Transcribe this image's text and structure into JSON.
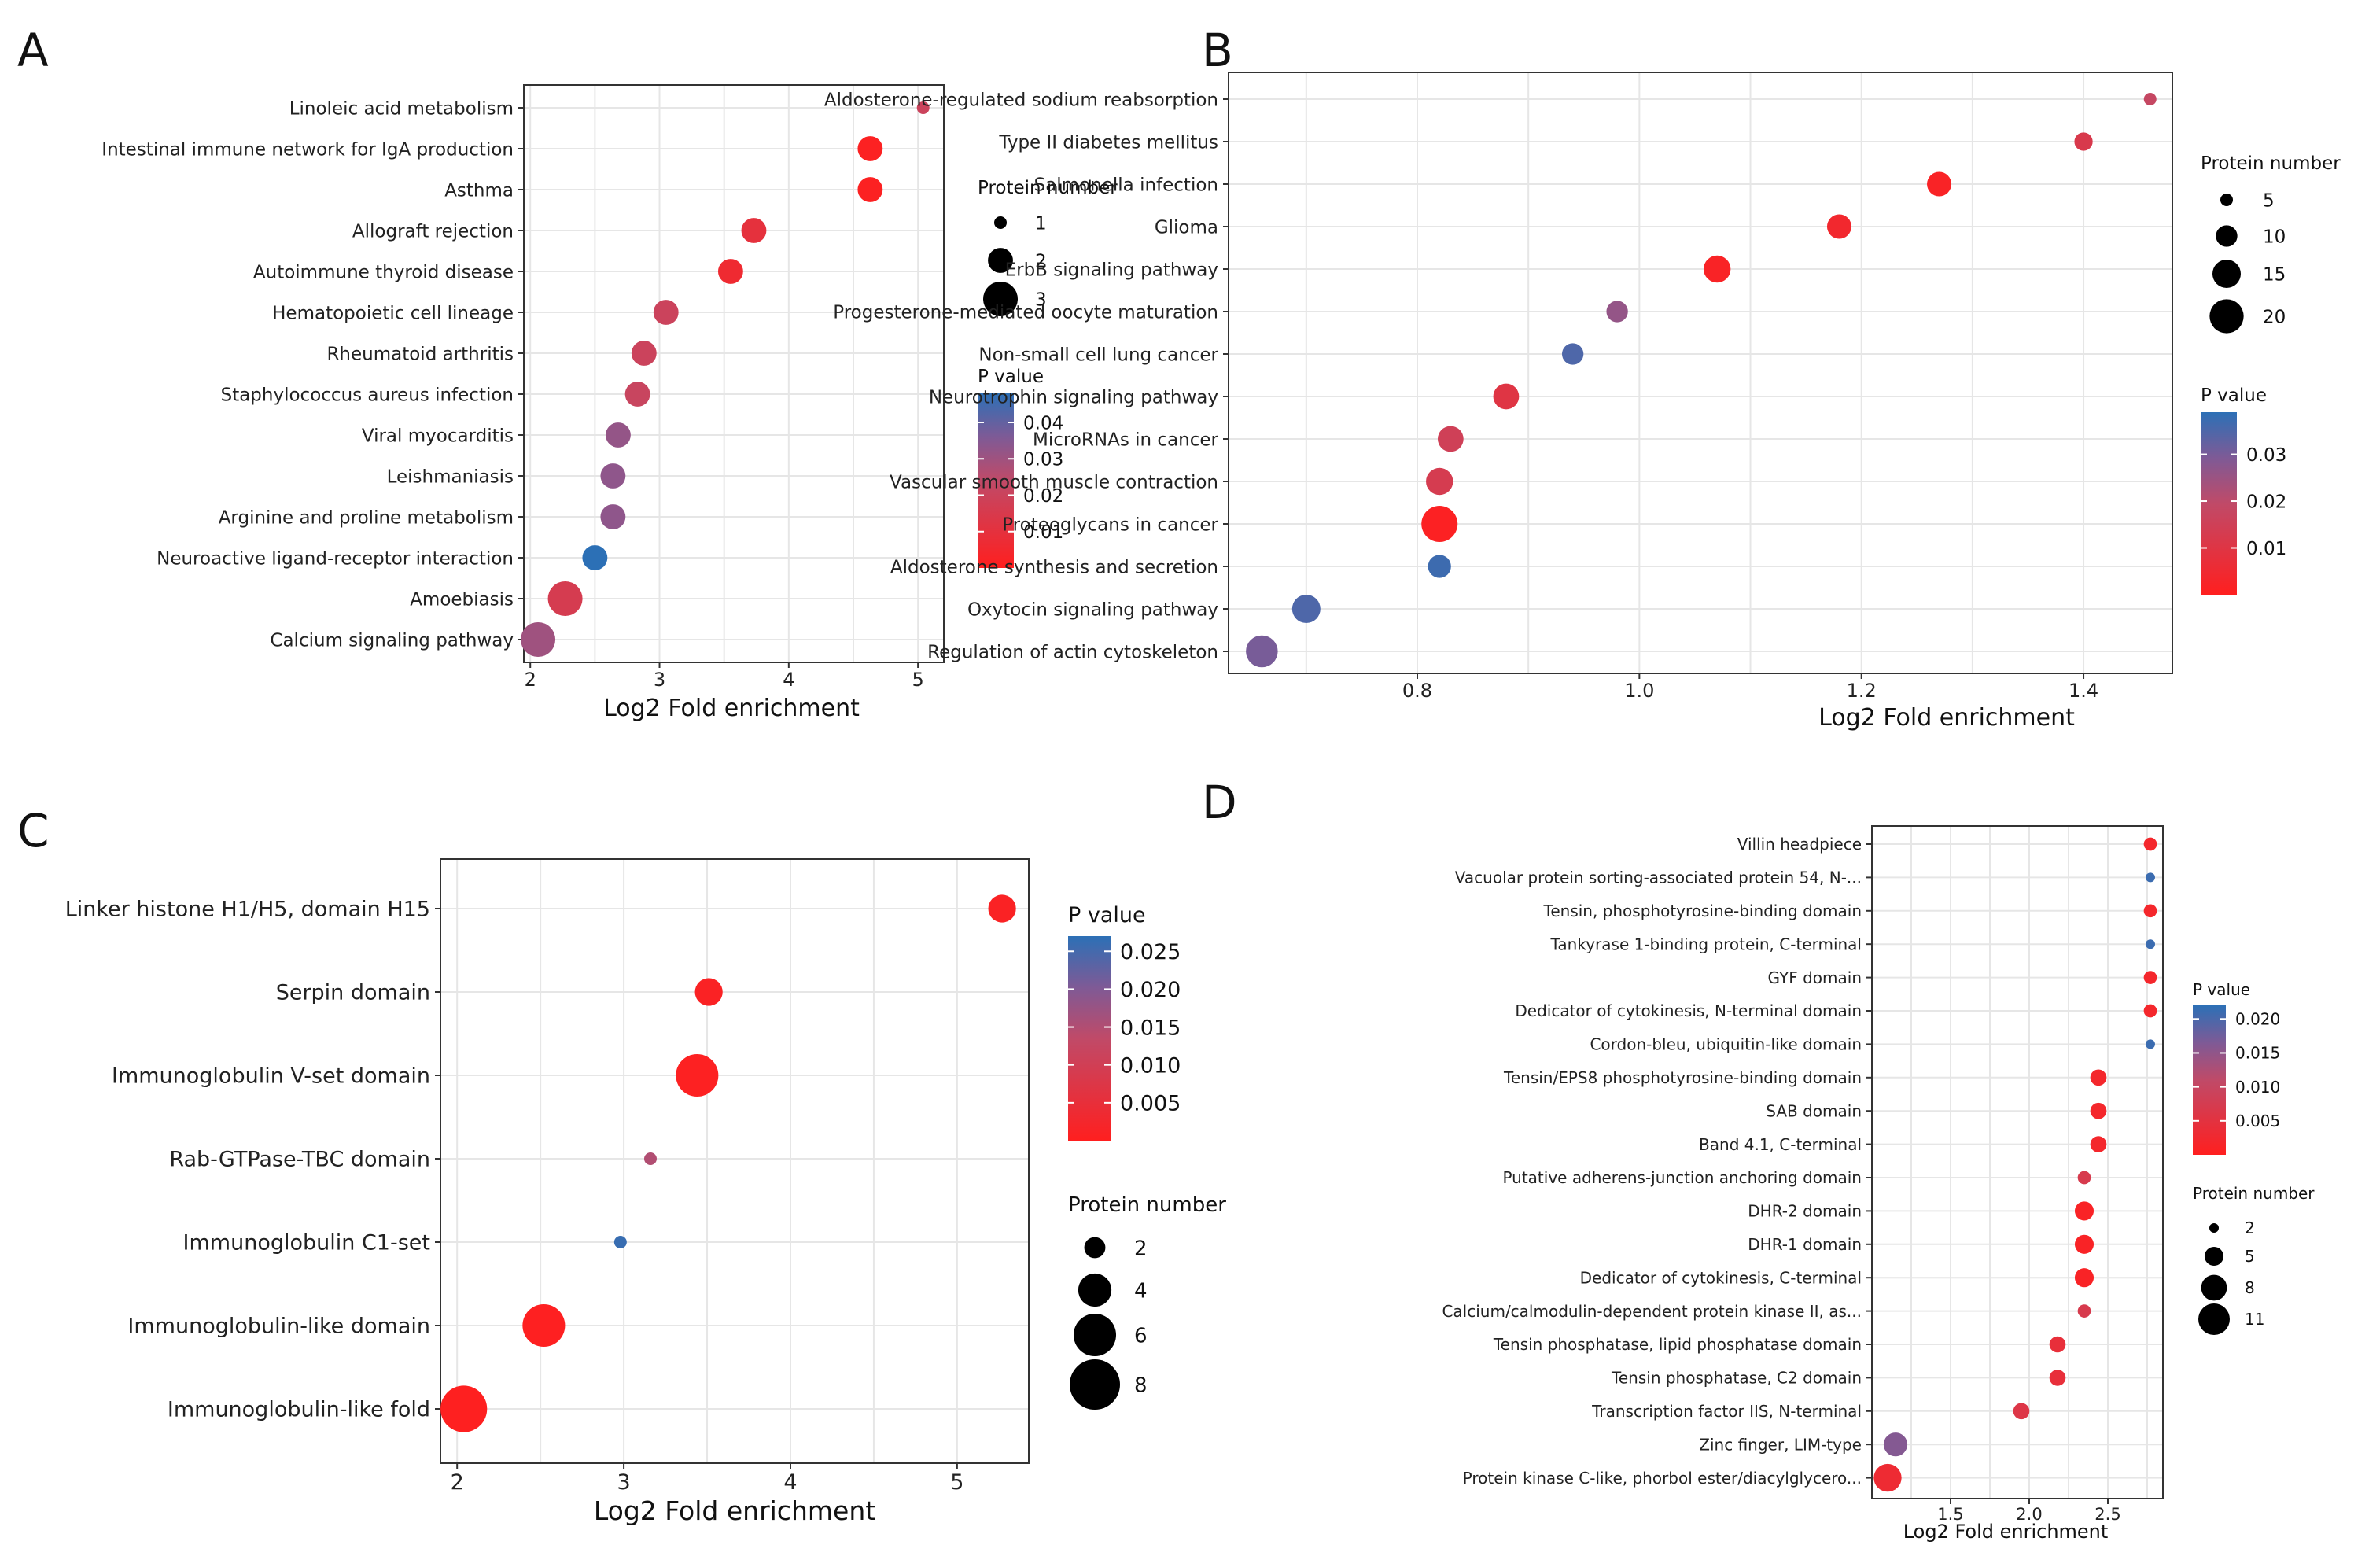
{
  "colors": {
    "high_p": "#2C70B6",
    "mid_p": "#7E5A96",
    "low_p": "#FF1F1F",
    "grid": "#E6E6E6",
    "frame": "#333333"
  },
  "chart_data": [
    {
      "panel": "A",
      "type": "scatter",
      "xlabel": "Log2 Fold enrichment",
      "xlim": [
        1.95,
        5.2
      ],
      "xticks": [
        2,
        3,
        4,
        5
      ],
      "categories": [
        "Linoleic acid metabolism",
        "Intestinal immune network for IgA production",
        "Asthma",
        "Allograft rejection",
        "Autoimmune thyroid disease",
        "Hematopoietic cell lineage",
        "Rheumatoid arthritis",
        "Staphylococcus aureus infection",
        "Viral myocarditis",
        "Leishmaniasis",
        "Arginine and proline metabolism",
        "Neuroactive ligand-receptor interaction",
        "Amoebiasis",
        "Calcium signaling pathway"
      ],
      "x": [
        5.04,
        4.63,
        4.63,
        3.73,
        3.55,
        3.05,
        2.88,
        2.83,
        2.68,
        2.64,
        2.64,
        2.5,
        2.27,
        2.06
      ],
      "protein_number": [
        1,
        2,
        2,
        2,
        2,
        2,
        2,
        2,
        2,
        2,
        2,
        2,
        3,
        3
      ],
      "p_value": [
        0.02,
        0.001,
        0.001,
        0.01,
        0.006,
        0.02,
        0.02,
        0.021,
        0.032,
        0.033,
        0.033,
        0.048,
        0.016,
        0.03
      ],
      "size_legend": {
        "title": "Protein number",
        "values": [
          1,
          2,
          3
        ],
        "labels": [
          "1",
          "2",
          "3"
        ]
      },
      "color_legend": {
        "title": "P value",
        "range": [
          0.0,
          0.048
        ],
        "ticks": [
          0.04,
          0.03,
          0.02,
          0.01
        ],
        "tick_labels": [
          "0.04",
          "0.03",
          "0.02",
          "0.01"
        ]
      }
    },
    {
      "panel": "B",
      "type": "scatter",
      "xlabel": "Log2 Fold enrichment",
      "xlim": [
        0.63,
        1.48
      ],
      "xticks": [
        0.8,
        1.0,
        1.2,
        1.4
      ],
      "tick_labels": [
        "0.8",
        "1.0",
        "1.2",
        "1.4"
      ],
      "categories": [
        "Aldosterone-regulated sodium reabsorption",
        "Type II diabetes mellitus",
        "Salmonella infection",
        "Glioma",
        "ErbB signaling pathway",
        "Progesterone-mediated oocyte maturation",
        "Non-small cell lung cancer",
        "Neurotrophin signaling pathway",
        "MicroRNAs in cancer",
        "Vascular smooth muscle contraction",
        "Proteoglycans in cancer",
        "Aldosterone synthesis and secretion",
        "Oxytocin signaling pathway",
        "Regulation of actin cytoskeleton"
      ],
      "x": [
        1.46,
        1.4,
        1.27,
        1.18,
        1.07,
        0.98,
        0.94,
        0.88,
        0.83,
        0.82,
        0.82,
        0.82,
        0.7,
        0.66
      ],
      "protein_number": [
        5,
        8,
        12,
        12,
        14,
        10,
        10,
        13,
        13,
        14,
        22,
        11,
        15,
        18
      ],
      "p_value": [
        0.018,
        0.012,
        0.002,
        0.004,
        0.002,
        0.026,
        0.035,
        0.01,
        0.015,
        0.013,
        0.001,
        0.037,
        0.035,
        0.03
      ],
      "size_legend": {
        "title": "Protein number",
        "values": [
          5,
          10,
          15,
          20
        ],
        "labels": [
          "5",
          "10",
          "15",
          "20"
        ]
      },
      "color_legend": {
        "title": "P value",
        "range": [
          0.0,
          0.039
        ],
        "ticks": [
          0.03,
          0.02,
          0.01
        ],
        "tick_labels": [
          "0.03",
          "0.02",
          "0.01"
        ]
      }
    },
    {
      "panel": "C",
      "type": "scatter",
      "xlabel": "Log2 Fold enrichment",
      "xlim": [
        1.9,
        5.43
      ],
      "xticks": [
        2,
        3,
        4,
        5
      ],
      "categories": [
        "Linker histone H1/H5, domain H15",
        "Serpin domain",
        "Immunoglobulin V-set domain",
        "Rab-GTPase-TBC domain",
        "Immunoglobulin C1-set",
        "Immunoglobulin-like domain",
        "Immunoglobulin-like fold"
      ],
      "x": [
        5.27,
        3.51,
        3.44,
        3.16,
        2.98,
        2.52,
        2.04
      ],
      "protein_number": [
        3,
        3,
        6,
        1,
        1,
        6,
        7
      ],
      "p_value": [
        0.001,
        0.001,
        0.0005,
        0.015,
        0.026,
        0.0003,
        0.0002
      ],
      "size_legend": {
        "title": "Protein number",
        "values": [
          2,
          4,
          6,
          8
        ],
        "labels": [
          "2",
          "4",
          "6",
          "8"
        ]
      },
      "color_legend": {
        "title": "P value",
        "range": [
          0.0,
          0.027
        ],
        "ticks": [
          0.025,
          0.02,
          0.015,
          0.01,
          0.005
        ],
        "tick_labels": [
          "0.025",
          "0.020",
          "0.015",
          "0.010",
          "0.005"
        ]
      }
    },
    {
      "panel": "D",
      "type": "scatter",
      "xlabel": "Log2 Fold enrichment",
      "xlim": [
        1.0,
        2.85
      ],
      "xticks": [
        1.5,
        2.0,
        2.5
      ],
      "tick_labels": [
        "1.5",
        "2.0",
        "2.5"
      ],
      "categories": [
        "Villin headpiece",
        "Vacuolar protein sorting-associated protein 54, N-...",
        "Tensin, phosphotyrosine-binding domain",
        "Tankyrase 1-binding protein, C-terminal",
        "GYF domain",
        "Dedicator of cytokinesis, N-terminal domain",
        "Cordon-bleu, ubiquitin-like domain",
        "Tensin/EPS8 phosphotyrosine-binding domain",
        "SAB domain",
        "Band 4.1, C-terminal",
        "Putative adherens-junction anchoring domain",
        "DHR-2 domain",
        "DHR-1 domain",
        "Dedicator of cytokinesis, C-terminal",
        "Calcium/calmodulin-dependent protein kinase II, as...",
        "Tensin phosphatase, lipid phosphatase domain",
        "Tensin phosphatase, C2 domain",
        "Transcription factor IIS, N-terminal",
        "Zinc finger, LIM-type",
        "Protein kinase C-like, phorbol ester/diacylglycero..."
      ],
      "x": [
        2.77,
        2.77,
        2.77,
        2.77,
        2.77,
        2.77,
        2.77,
        2.44,
        2.44,
        2.44,
        2.35,
        2.35,
        2.35,
        2.35,
        2.35,
        2.18,
        2.18,
        1.95,
        1.15,
        1.1
      ],
      "protein_number": [
        3,
        2,
        3,
        2,
        3,
        3,
        2,
        4,
        4,
        4,
        3,
        5,
        5,
        5,
        3,
        4,
        4,
        4,
        7,
        9
      ],
      "p_value": [
        0.002,
        0.021,
        0.002,
        0.021,
        0.002,
        0.002,
        0.021,
        0.002,
        0.002,
        0.002,
        0.007,
        0.001,
        0.001,
        0.001,
        0.007,
        0.004,
        0.004,
        0.006,
        0.016,
        0.003
      ],
      "size_legend": {
        "title": "Protein number",
        "values": [
          2,
          5,
          8,
          11
        ],
        "labels": [
          "2",
          "5",
          "8",
          "11"
        ]
      },
      "color_legend": {
        "title": "P value",
        "range": [
          0.0,
          0.022
        ],
        "ticks": [
          0.02,
          0.015,
          0.01,
          0.005
        ],
        "tick_labels": [
          "0.020",
          "0.015",
          "0.010",
          "0.005"
        ]
      }
    }
  ]
}
